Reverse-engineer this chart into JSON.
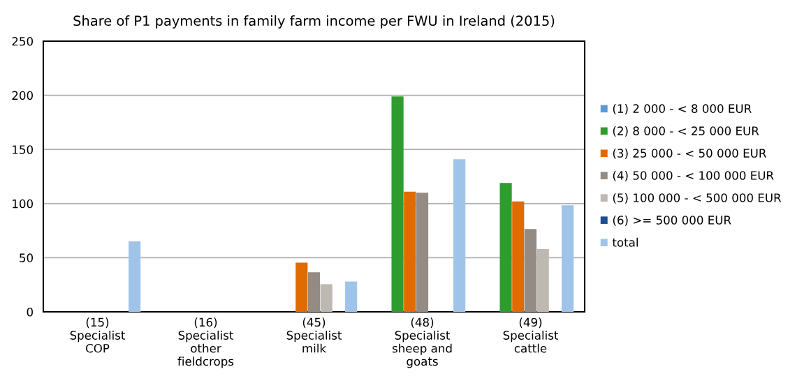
{
  "chart_data": {
    "type": "bar",
    "title": "Share of P1 payments in family farm income per FWU in Ireland (2015)",
    "categories": [
      "(15)\nSpecialist\nCOP",
      "(16)\nSpecialist\nother\nfieldcrops",
      "(45)\nSpecialist\nmilk",
      "(48)\nSpecialist\nsheep and\ngoats",
      "(49)\nSpecialist\ncattle"
    ],
    "series": [
      {
        "name": "(1) 2 000 - < 8 000 EUR",
        "color": "#5b9bd5",
        "values": [
          null,
          null,
          null,
          null,
          null
        ]
      },
      {
        "name": "(2) 8 000 - < 25 000 EUR",
        "color": "#2e9c2e",
        "values": [
          null,
          null,
          null,
          199,
          119
        ]
      },
      {
        "name": "(3) 25 000 - < 50 000 EUR",
        "color": "#e06b00",
        "values": [
          null,
          null,
          45.5,
          111,
          102
        ]
      },
      {
        "name": "(4) 50 000 - < 100 000 EUR",
        "color": "#938b84",
        "values": [
          null,
          null,
          36.5,
          110,
          76.5
        ]
      },
      {
        "name": "(5) 100 000 - < 500 000 EUR",
        "color": "#bdb9b2",
        "values": [
          null,
          null,
          25.5,
          null,
          58
        ]
      },
      {
        "name": "(6) >= 500 000 EUR",
        "color": "#1f4e8c",
        "values": [
          null,
          null,
          null,
          null,
          null
        ]
      },
      {
        "name": "total",
        "color": "#9fc4ea",
        "values": [
          65,
          null,
          28,
          141,
          98.5
        ]
      }
    ],
    "ylim": [
      0,
      250
    ],
    "yticks": [
      0,
      50,
      100,
      150,
      200,
      250
    ],
    "grid": "y",
    "legend": "right"
  }
}
